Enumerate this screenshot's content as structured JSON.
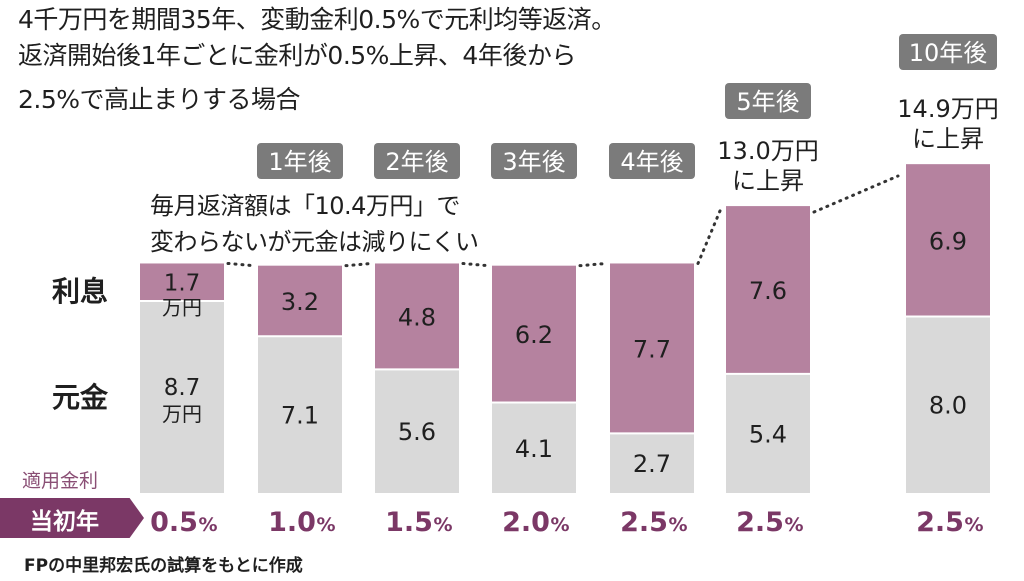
{
  "title": {
    "line1": "4千万円を期間35年、変動金利0.5%で元利均等返済。",
    "line2": "返済開始後1年ごとに金利が0.5%上昇、4年後から",
    "line3": "2.5%で高止まりする場合"
  },
  "annotation": {
    "line1": "毎月返済額は「10.4万円」で",
    "line2": "変わらないが元金は減りにくい"
  },
  "labels": {
    "interest": "利息",
    "principal": "元金",
    "applied_rate": "適用金利",
    "initial": "当初年",
    "unit_man_yen": "万円"
  },
  "source": "FPの中里邦宏氏の試算をもとに作成",
  "colors": {
    "interest": "#b5829f",
    "principal": "#d9d9d9",
    "tag_bg": "#7b7b7b",
    "accent": "#7b3866",
    "dotted": "#333333"
  },
  "chart_data": {
    "type": "bar",
    "stacked": true,
    "unit": "万円",
    "categories": [
      "当初年",
      "1年後",
      "2年後",
      "3年後",
      "4年後",
      "5年後",
      "10年後"
    ],
    "interest_rates": [
      0.5,
      1.0,
      1.5,
      2.0,
      2.5,
      2.5,
      2.5
    ],
    "rate_labels": [
      "0.5",
      "1.0",
      "1.5",
      "2.0",
      "2.5",
      "2.5",
      "2.5"
    ],
    "rate_unit": "%",
    "series": [
      {
        "name": "元金",
        "values": [
          8.7,
          7.1,
          5.6,
          4.1,
          2.7,
          5.4,
          8.0
        ],
        "labels": [
          "8.7",
          "7.1",
          "5.6",
          "4.1",
          "2.7",
          "5.4",
          "8.0"
        ]
      },
      {
        "name": "利息",
        "values": [
          1.7,
          3.2,
          4.8,
          6.2,
          7.7,
          7.6,
          6.9
        ],
        "labels": [
          "1.7",
          "3.2",
          "4.8",
          "6.2",
          "7.7",
          "7.6",
          "6.9"
        ]
      }
    ],
    "totals": [
      null,
      null,
      null,
      null,
      null,
      {
        "line1": "13.0万円",
        "line2": "に上昇"
      },
      {
        "line1": "14.9万円",
        "line2": "に上昇"
      }
    ]
  }
}
